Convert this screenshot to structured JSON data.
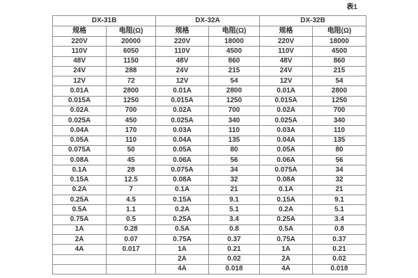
{
  "caption": "表1",
  "colors": {
    "background": "#ffffff",
    "border": "#8c8c8c",
    "text": "#333333"
  },
  "chart_data": {
    "type": "table",
    "title": "表1",
    "groups": [
      {
        "label": "DX-31B"
      },
      {
        "label": "DX-32A"
      },
      {
        "label": "DX-32B"
      }
    ],
    "sub_headers": {
      "spec": "规格",
      "resistance": "电阻(Ω)"
    },
    "columns": [
      "DX-31B 规格",
      "DX-31B 电阻(Ω)",
      "DX-32A 规格",
      "DX-32A 电阻(Ω)",
      "DX-32B 规格",
      "DX-32B 电阻(Ω)"
    ],
    "rows": [
      [
        "220V",
        "20000",
        "220V",
        "18000",
        "220V",
        "18000"
      ],
      [
        "110V",
        "6050",
        "110V",
        "4500",
        "110V",
        "4500"
      ],
      [
        "48V",
        "1150",
        "48V",
        "860",
        "48V",
        "860"
      ],
      [
        "24V",
        "288",
        "24V",
        "215",
        "24V",
        "215"
      ],
      [
        "12V",
        "72",
        "12V",
        "54",
        "12V",
        "54"
      ],
      [
        "0.01A",
        "2800",
        "0.01A",
        "2800",
        "0.01A",
        "2800"
      ],
      [
        "0.015A",
        "1250",
        "0.015A",
        "1250",
        "0.015A",
        "1250"
      ],
      [
        "0.02A",
        "700",
        "0.02A",
        "700",
        "0.02A",
        "700"
      ],
      [
        "0.025A",
        "450",
        "0.025A",
        "340",
        "0.025A",
        "340"
      ],
      [
        "0.04A",
        "170",
        "0.03A",
        "110",
        "0.03A",
        "110"
      ],
      [
        "0.05A",
        "110",
        "0.04A",
        "135",
        "0.04A",
        "135"
      ],
      [
        "0.075A",
        "50",
        "0.05A",
        "80",
        "0.05A",
        "80"
      ],
      [
        "0.08A",
        "45",
        "0.06A",
        "56",
        "0.06A",
        "56"
      ],
      [
        "0.1A",
        "28",
        "0.075A",
        "34",
        "0.075A",
        "34"
      ],
      [
        "0.15A",
        "12.5",
        "0.08A",
        "32",
        "0.08A",
        "32"
      ],
      [
        "0.2A",
        "7",
        "0.1A",
        "21",
        "0.1A",
        "21"
      ],
      [
        "0.25A",
        "4.5",
        "0.15A",
        "9.1",
        "0.15A",
        "9.1"
      ],
      [
        "0.5A",
        "1.1",
        "0.2A",
        "5.1",
        "0.2A",
        "5.1"
      ],
      [
        "0.75A",
        "0.5",
        "0.25A",
        "3.4",
        "0.25A",
        "3.4"
      ],
      [
        "1A",
        "0.28",
        "0.5A",
        "0.8",
        "0.5A",
        "0.8"
      ],
      [
        "2A",
        "0.07",
        "0.75A",
        "0.37",
        "0.75A",
        "0.37"
      ],
      [
        "4A",
        "0.017",
        "1A",
        "0.21",
        "1A",
        "0.21"
      ],
      [
        "",
        "",
        "2A",
        "0.02",
        "2A",
        "0.02"
      ],
      [
        "",
        "",
        "4A",
        "0.018",
        "4A",
        "0.018"
      ]
    ]
  }
}
